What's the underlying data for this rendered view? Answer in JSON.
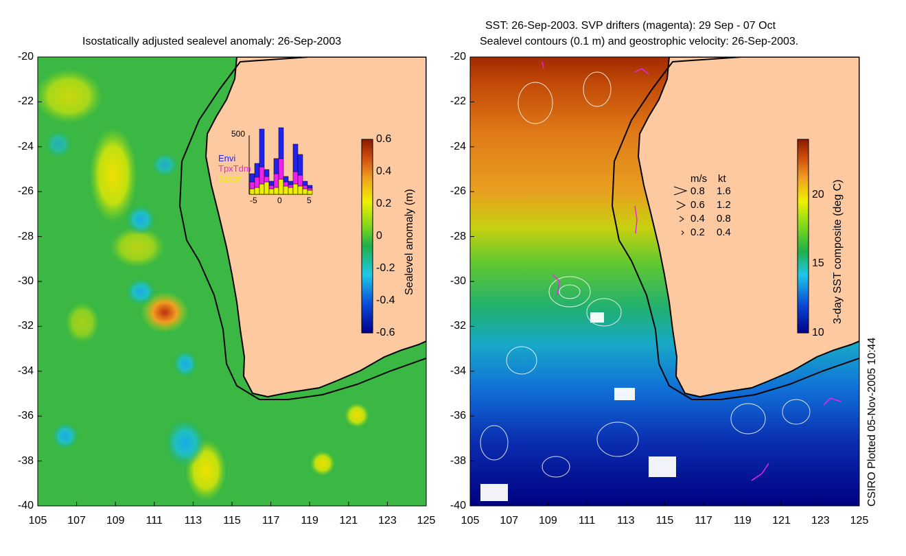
{
  "left_panel": {
    "title": "Isostatically adjusted sealevel anomaly: 26-Sep-2003",
    "colorbar_label": "Sealevel anomaly (m)",
    "colorbar_ticks": [
      "0.6",
      "0.4",
      "0.2",
      "0",
      "-0.2",
      "-0.4",
      "-0.6"
    ],
    "colorbar_range": [
      -0.6,
      0.6
    ],
    "inset": {
      "ymax_label": "500",
      "x_ticks": [
        "-5",
        "0",
        "5"
      ],
      "legend": [
        {
          "label": "Envi",
          "color": "#2222ee"
        },
        {
          "label": "TpxTdm",
          "color": "#ee22ee"
        },
        {
          "label": "Jason",
          "color": "#eeee00"
        }
      ]
    }
  },
  "right_panel": {
    "title_line1": "SST: 26-Sep-2003. SVP drifters (magenta): 29 Sep - 07 Oct",
    "title_line2": "Sealevel contours (0.1 m) and geostrophic velocity: 26-Sep-2003.",
    "colorbar_label": "3-day SST composite (deg C)",
    "colorbar_ticks": [
      "20",
      "15",
      "10"
    ],
    "colorbar_range": [
      10,
      24
    ],
    "velocity_legend": {
      "header_ms": "m/s",
      "header_kt": "kt",
      "rows": [
        {
          "ms": "0.8",
          "kt": "1.6"
        },
        {
          "ms": "0.6",
          "kt": "1.2"
        },
        {
          "ms": "0.4",
          "kt": "0.8"
        },
        {
          "ms": "0.2",
          "kt": "0.4"
        }
      ]
    }
  },
  "lat_ticks": [
    "-20",
    "-22",
    "-24",
    "-26",
    "-28",
    "-30",
    "-32",
    "-34",
    "-36",
    "-38",
    "-40"
  ],
  "lon_ticks": [
    "105",
    "107",
    "109",
    "111",
    "113",
    "115",
    "117",
    "119",
    "121",
    "123",
    "125"
  ],
  "credit": "CSIRO Plotted 05-Nov-2005 10:44",
  "colors": {
    "land": "#fcc9a0",
    "ocean_green": "#2cb34a",
    "coast": "#000000"
  }
}
